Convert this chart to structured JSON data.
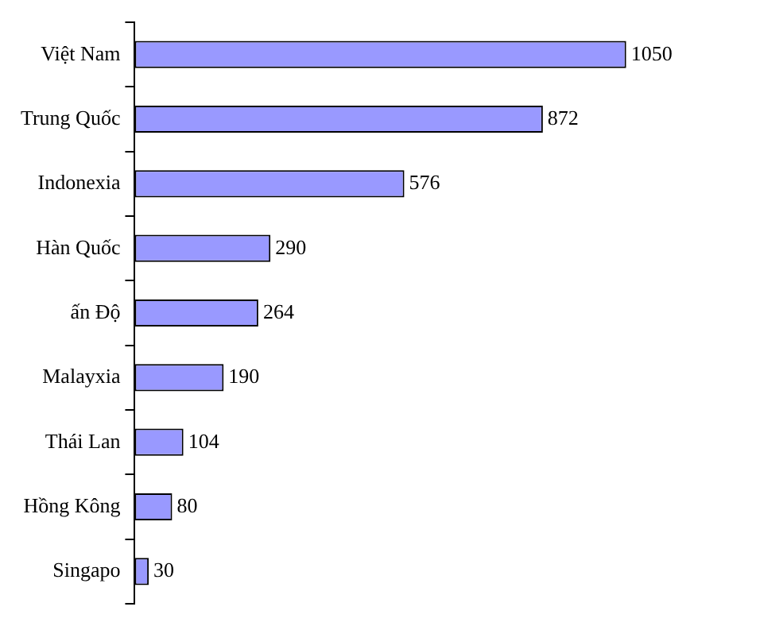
{
  "chart_data": {
    "type": "bar",
    "orientation": "horizontal",
    "categories": [
      "Việt Nam",
      "Trung Quốc",
      "Indonexia",
      "Hàn Quốc",
      "ấn Độ",
      "Malayxia",
      "Thái Lan",
      "Hồng Kông",
      "Singapo"
    ],
    "values": [
      1050,
      872,
      576,
      290,
      264,
      190,
      104,
      80,
      30
    ],
    "color": "#9999ff",
    "data_labels": true,
    "legend": false,
    "tick_labels": "y"
  }
}
